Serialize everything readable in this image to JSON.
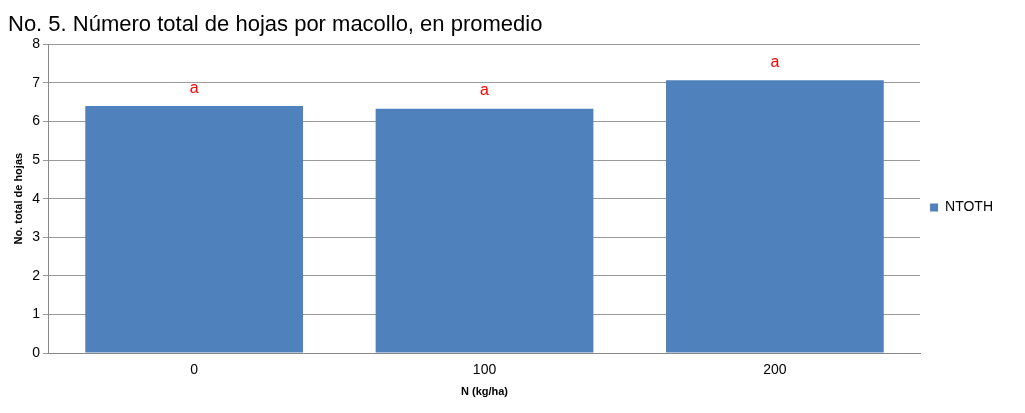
{
  "chart_data": {
    "type": "bar",
    "title": "No. 5. Número total de hojas por macollo, en promedio",
    "xlabel": "N (kg/ha)",
    "ylabel": "No. total de hojas",
    "categories": [
      "0",
      "100",
      "200"
    ],
    "series": [
      {
        "name": "NTOTH",
        "color": "#4f81bd",
        "values": [
          6.4,
          6.33,
          7.07
        ]
      }
    ],
    "ylim": [
      0,
      8
    ],
    "yticks": [
      0,
      1,
      2,
      3,
      4,
      5,
      6,
      7,
      8
    ],
    "grid": "y",
    "legend": "right",
    "annotations": [
      "a",
      "a",
      "a"
    ]
  }
}
